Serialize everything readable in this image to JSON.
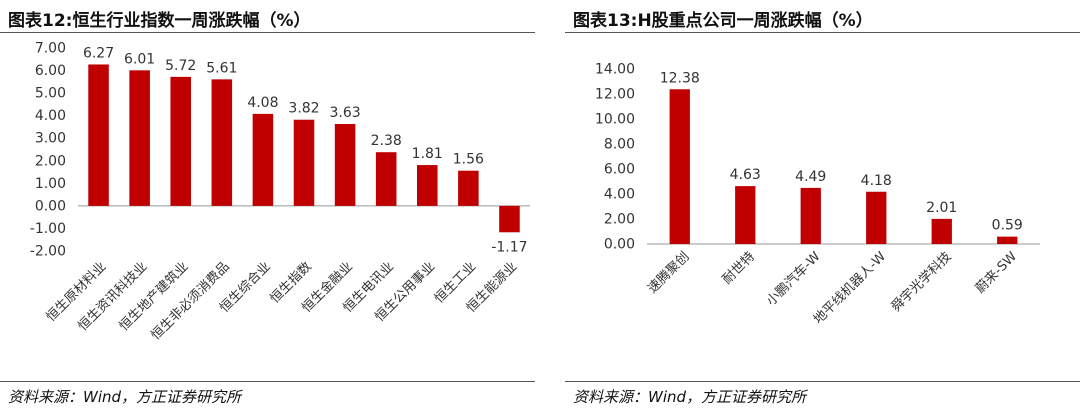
{
  "left": {
    "title": "图表12:恒生行业指数一周涨跌幅（%）",
    "source": "资料来源：Wind，方正证券研究所"
  },
  "right": {
    "title": "图表13:H股重点公司一周涨跌幅（%）",
    "source": "资料来源：Wind，方正证券研究所"
  },
  "chart_data": [
    {
      "type": "bar",
      "title": "图表12:恒生行业指数一周涨跌幅（%）",
      "categories": [
        "恒生原材料业",
        "恒生资讯科技业",
        "恒生地产建筑业",
        "恒生非必须消费品",
        "恒生综合业",
        "恒生指数",
        "恒生金融业",
        "恒生电讯业",
        "恒生公用事业",
        "恒生工业",
        "恒生能源业"
      ],
      "values": [
        6.27,
        6.01,
        5.72,
        5.61,
        4.08,
        3.82,
        3.63,
        2.38,
        1.81,
        1.56,
        -1.17
      ],
      "value_labels": [
        "6.27",
        "6.01",
        "5.72",
        "5.61",
        "4.08",
        "3.82",
        "3.63",
        "2.38",
        "1.81",
        "1.56",
        "-1.17"
      ],
      "ylim": [
        -2,
        7
      ],
      "yticks": [
        "7.00",
        "6.00",
        "5.00",
        "4.00",
        "3.00",
        "2.00",
        "1.00",
        "0.00",
        "-1.00",
        "-2.00"
      ],
      "bar_color": "#C00000",
      "grid": false,
      "legend": "none"
    },
    {
      "type": "bar",
      "title": "图表13:H股重点公司一周涨跌幅（%）",
      "categories": [
        "速腾聚创",
        "耐世特",
        "小鹏汽车-W",
        "地平线机器人-W",
        "舜宇光学科技",
        "蔚来-SW"
      ],
      "values": [
        12.38,
        4.63,
        4.49,
        4.18,
        2.01,
        0.59
      ],
      "value_labels": [
        "12.38",
        "4.63",
        "4.49",
        "4.18",
        "2.01",
        "0.59"
      ],
      "ylim": [
        0,
        14
      ],
      "yticks": [
        "14.00",
        "12.00",
        "10.00",
        "8.00",
        "6.00",
        "4.00",
        "2.00",
        "0.00"
      ],
      "bar_color": "#C00000",
      "grid": false,
      "legend": "none"
    }
  ]
}
